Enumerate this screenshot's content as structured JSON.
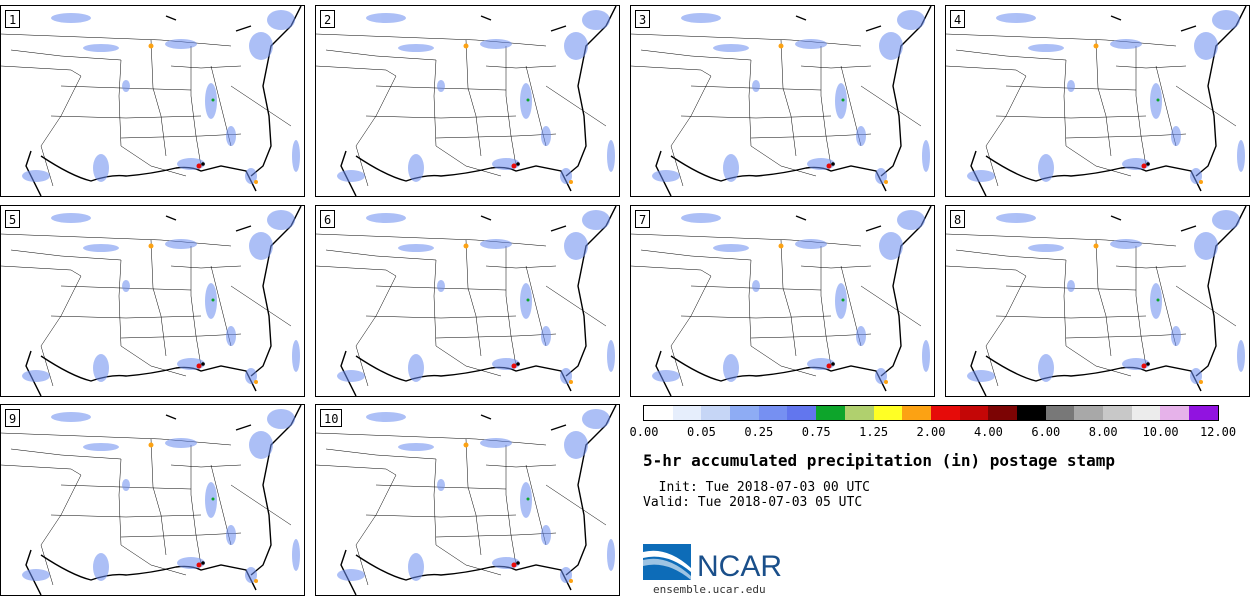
{
  "panels": [
    {
      "label": "1"
    },
    {
      "label": "2"
    },
    {
      "label": "3"
    },
    {
      "label": "4"
    },
    {
      "label": "5"
    },
    {
      "label": "6"
    },
    {
      "label": "7"
    },
    {
      "label": "8"
    },
    {
      "label": "9"
    },
    {
      "label": "10"
    }
  ],
  "colorbar": {
    "colors": [
      "#ffffff",
      "#e6eefc",
      "#c6d6f6",
      "#8eacf4",
      "#7690f2",
      "#6276ee",
      "#0da52b",
      "#b0d06e",
      "#ffff25",
      "#fca213",
      "#e60b09",
      "#c40606",
      "#7c0404",
      "#000000",
      "#787878",
      "#a8a8a8",
      "#c8c8c8",
      "#ececec",
      "#e6b2ea",
      "#9113e0"
    ],
    "ticks": [
      "0.00",
      "0.05",
      "0.25",
      "0.75",
      "1.25",
      "2.00",
      "4.00",
      "6.00",
      "8.00",
      "10.00",
      "12.00"
    ]
  },
  "title": "5-hr accumulated precipitation (in) postage stamp",
  "init": "  Init: Tue 2018-07-03 00 UTC",
  "valid": "Valid: Tue 2018-07-03 05 UTC",
  "logo": {
    "text": "NCAR",
    "url": "ensemble.ucar.edu",
    "color": "#1a4f8a"
  }
}
